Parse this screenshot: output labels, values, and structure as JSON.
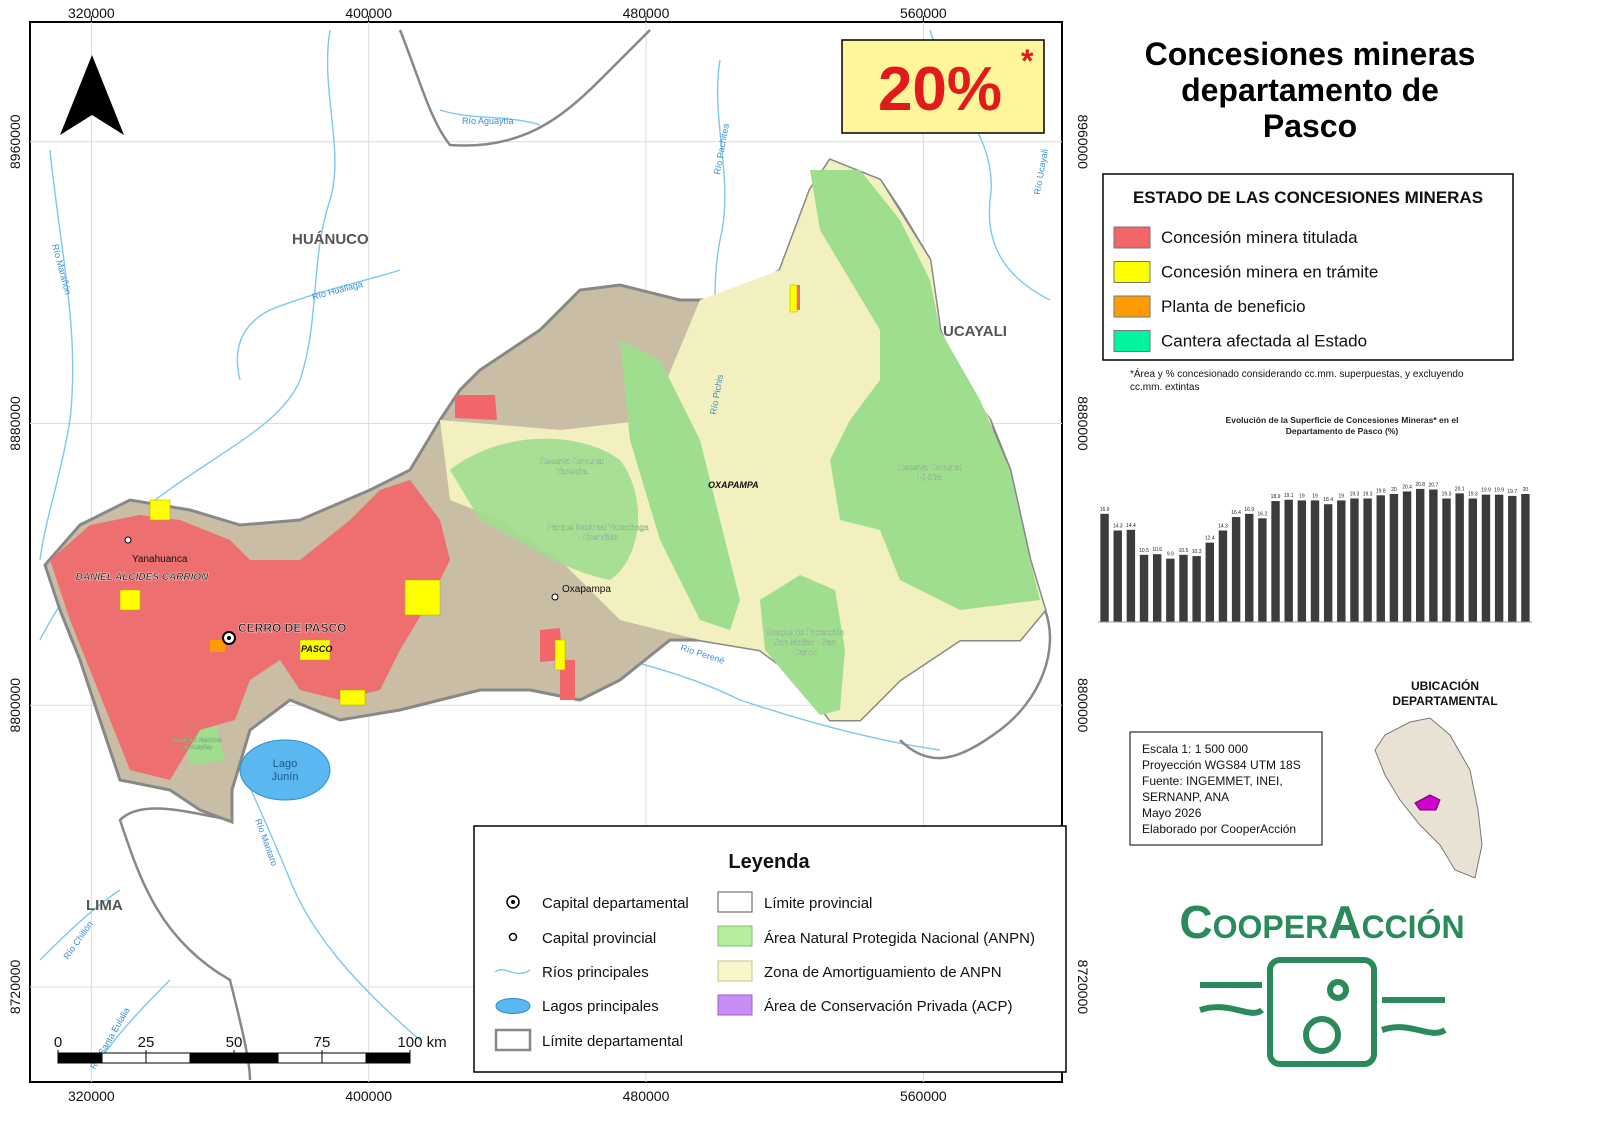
{
  "title": "Concesiones mineras departamento de Pasco",
  "badge": {
    "value": "20%",
    "mark": "*"
  },
  "map": {
    "xlim": [
      302300,
      600000
    ],
    "ylim": [
      8693000,
      8994000
    ],
    "xticks": [
      320000,
      400000,
      480000,
      560000
    ],
    "yticks": [
      8720000,
      8800000,
      8880000,
      8960000
    ],
    "regions": [
      "HUÁNUCO",
      "UCAYALI",
      "LIMA"
    ],
    "rivers": [
      "Río Aguaytía",
      "Río Pachitea",
      "Río Ucayali",
      "Río Marañón",
      "Río Huallaga",
      "Río Pichis",
      "Río Perené",
      "Río Mantaro",
      "Río Chillón",
      "Río Santa Eulalia"
    ],
    "areas": [
      [
        "Reserva Comunal",
        "Yanesha"
      ],
      [
        "Parque Nacional Yanachaga",
        "- Chemillén"
      ],
      [
        "Reserva Comunal",
        "El Sira"
      ],
      [
        "Bosque de Protección",
        "San Matías - San",
        "Carlos"
      ],
      [
        "Santuario Nacional",
        "de Huayllay"
      ]
    ],
    "provinces": [
      "DANIEL ALCIDES CARRION",
      "PASCO",
      "OXAPAMPA"
    ],
    "places": [
      "Yanahuanca",
      "CERRO DE PASCO",
      "Oxapampa"
    ],
    "lake": [
      "Lago",
      "Junín"
    ]
  },
  "status_legend": {
    "title": "ESTADO DE LAS CONCESIONES MINERAS",
    "items": [
      {
        "label": "Concesión minera titulada",
        "color": "#f2666a"
      },
      {
        "label": "Concesión minera en trámite",
        "color": "#ffff00"
      },
      {
        "label": "Planta de beneficio",
        "color": "#ff9a00"
      },
      {
        "label": "Cantera afectada al Estado",
        "color": "#00f59c"
      }
    ]
  },
  "footnote": "*Área y % concesionado considerando cc.mm. superpuestas, y excluyendo cc.mm. extintas",
  "chart_data": {
    "type": "bar",
    "title": "Evolución de la Superficie de Concesiones Mineras* en el Departamento de Pasco (%)",
    "values": [
      16.9,
      14.3,
      14.4,
      10.5,
      10.6,
      9.9,
      10.5,
      10.3,
      12.4,
      14.3,
      16.4,
      16.9,
      16.2,
      18.9,
      19.1,
      19.0,
      19.0,
      18.4,
      19.0,
      19.3,
      19.3,
      19.8,
      20.0,
      20.4,
      20.8,
      20.7,
      19.3,
      20.1,
      19.3,
      19.9,
      19.9,
      19.7,
      20.0
    ],
    "color": "#3c3c3c",
    "ylim": [
      0,
      25
    ]
  },
  "location_title": [
    "UBICACIÓN",
    "DEPARTAMENTAL"
  ],
  "info": [
    "Escala 1: 1 500 000",
    "Proyección WGS84 UTM 18S",
    "Fuente: INGEMMET, INEI,",
    "SERNANP, ANA",
    "Mayo 2026",
    "Elaborado por CooperAcción"
  ],
  "scale_bar": {
    "ticks": [
      0,
      25,
      50,
      75,
      {
        "value": 100,
        "label": "100 km"
      }
    ]
  },
  "legend": {
    "title": "Leyenda",
    "items": [
      "Capital departamental",
      "Capital provincial",
      "Ríos principales",
      "Lagos principales",
      "Límite departamental",
      "Límite provincial",
      "Área Natural Protegida Nacional (ANPN)",
      "Zona de Amortiguamiento de ANPN",
      "Área de Conservación Privada (ACP)"
    ]
  },
  "logo": "CooperAcción"
}
